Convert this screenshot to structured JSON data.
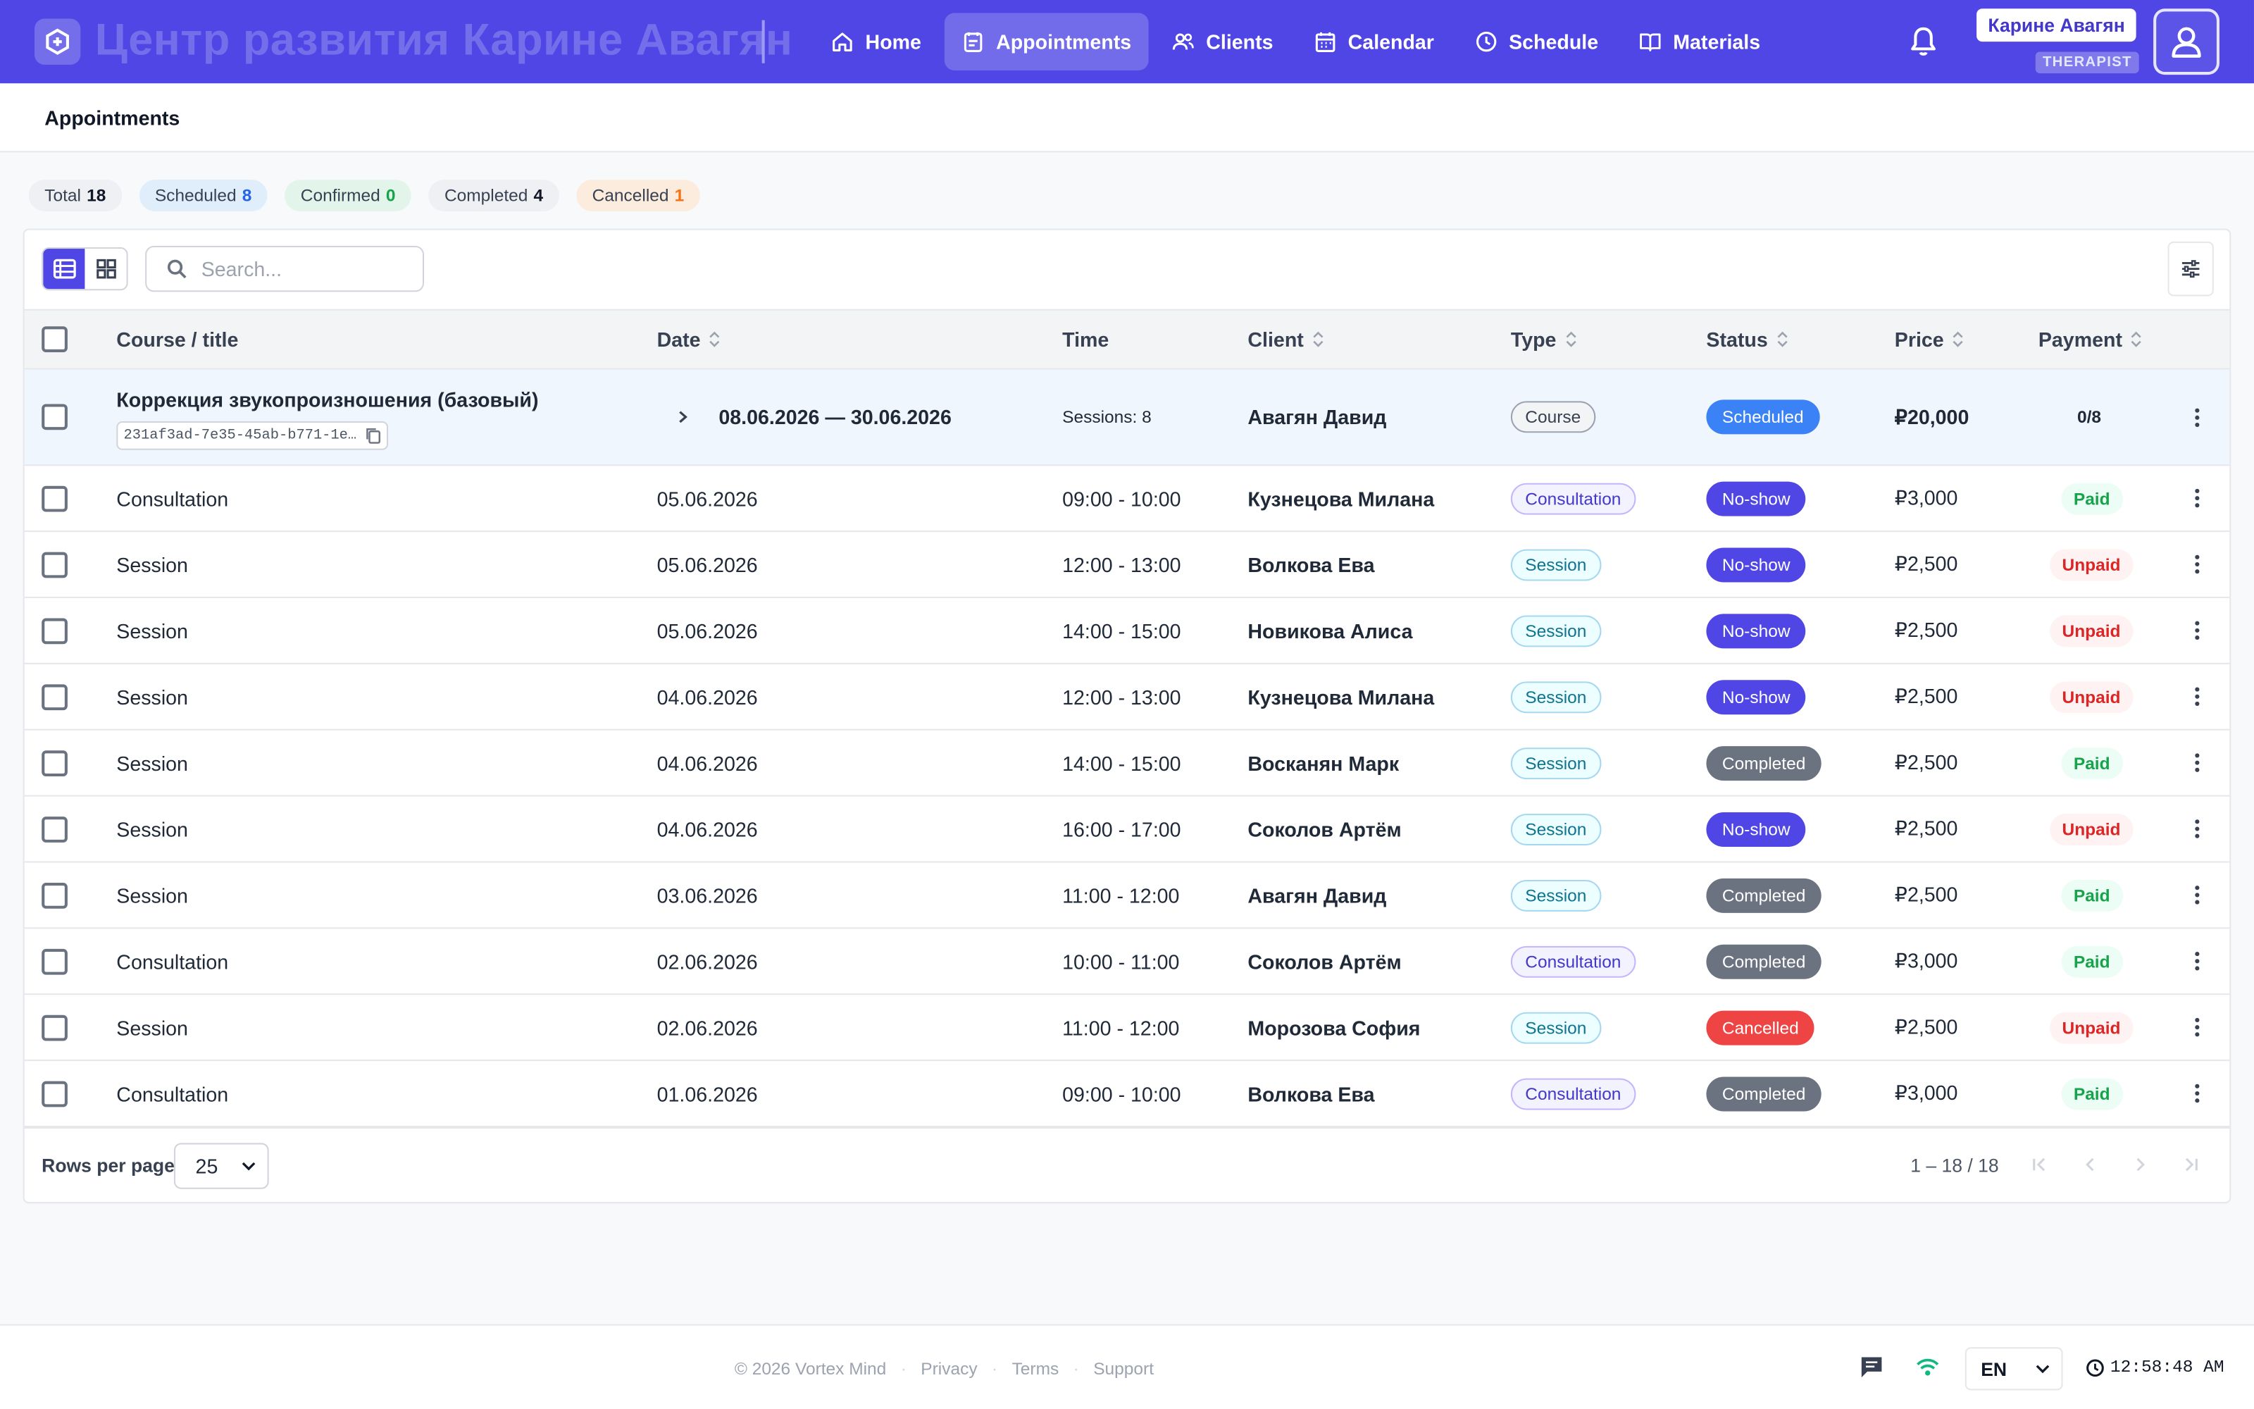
{
  "app": {
    "brand": "Центр развития Карине Авагян",
    "nav": [
      {
        "label": "Home",
        "icon": "home-icon"
      },
      {
        "label": "Appointments",
        "icon": "appointments-icon",
        "active": true
      },
      {
        "label": "Clients",
        "icon": "clients-icon"
      },
      {
        "label": "Calendar",
        "icon": "calendar-icon"
      },
      {
        "label": "Schedule",
        "icon": "clock-icon"
      },
      {
        "label": "Materials",
        "icon": "book-icon"
      }
    ],
    "user": {
      "name": "Карине Авагян",
      "role": "THERAPIST"
    },
    "accent": "#4f46e5"
  },
  "page": {
    "title": "Appointments"
  },
  "stats": [
    {
      "label": "Total",
      "count": "18",
      "bg": "#eef0f3",
      "color": "#111827"
    },
    {
      "label": "Scheduled",
      "count": "8",
      "bg": "#e0edfb",
      "color": "#2563eb"
    },
    {
      "label": "Confirmed",
      "count": "0",
      "bg": "#e3f5ea",
      "color": "#16a34a"
    },
    {
      "label": "Completed",
      "count": "4",
      "bg": "#eef0f3",
      "color": "#111827"
    },
    {
      "label": "Cancelled",
      "count": "1",
      "bg": "#fcecdd",
      "color": "#f97316"
    }
  ],
  "toolbar": {
    "search_placeholder": "Search..."
  },
  "table": {
    "columns": {
      "title": "Course / title",
      "date": "Date",
      "time": "Time",
      "client": "Client",
      "type": "Type",
      "status": "Status",
      "price": "Price",
      "payment": "Payment"
    },
    "course_row": {
      "title": "Коррекция звукопроизношения (базовый)",
      "id": "231af3ad-7e35-45ab-b771-1e…",
      "date": "08.06.2026 — 30.06.2026",
      "time": "Sessions: 8",
      "client": "Авагян Давид",
      "type": "Course",
      "status": "Scheduled",
      "price": "₽20,000",
      "payment": "0/8"
    },
    "rows": [
      {
        "title": "Consultation",
        "date": "05.06.2026",
        "time": "09:00 - 10:00",
        "client": "Кузнецова Милана",
        "type": "Consultation",
        "status": "No-show",
        "price": "₽3,000",
        "payment": "Paid"
      },
      {
        "title": "Session",
        "date": "05.06.2026",
        "time": "12:00 - 13:00",
        "client": "Волкова Ева",
        "type": "Session",
        "status": "No-show",
        "price": "₽2,500",
        "payment": "Unpaid"
      },
      {
        "title": "Session",
        "date": "05.06.2026",
        "time": "14:00 - 15:00",
        "client": "Новикова Алиса",
        "type": "Session",
        "status": "No-show",
        "price": "₽2,500",
        "payment": "Unpaid"
      },
      {
        "title": "Session",
        "date": "04.06.2026",
        "time": "12:00 - 13:00",
        "client": "Кузнецова Милана",
        "type": "Session",
        "status": "No-show",
        "price": "₽2,500",
        "payment": "Unpaid"
      },
      {
        "title": "Session",
        "date": "04.06.2026",
        "time": "14:00 - 15:00",
        "client": "Восканян Марк",
        "type": "Session",
        "status": "Completed",
        "price": "₽2,500",
        "payment": "Paid"
      },
      {
        "title": "Session",
        "date": "04.06.2026",
        "time": "16:00 - 17:00",
        "client": "Соколов Артём",
        "type": "Session",
        "status": "No-show",
        "price": "₽2,500",
        "payment": "Unpaid"
      },
      {
        "title": "Session",
        "date": "03.06.2026",
        "time": "11:00 - 12:00",
        "client": "Авагян Давид",
        "type": "Session",
        "status": "Completed",
        "price": "₽2,500",
        "payment": "Paid"
      },
      {
        "title": "Consultation",
        "date": "02.06.2026",
        "time": "10:00 - 11:00",
        "client": "Соколов Артём",
        "type": "Consultation",
        "status": "Completed",
        "price": "₽3,000",
        "payment": "Paid"
      },
      {
        "title": "Session",
        "date": "02.06.2026",
        "time": "11:00 - 12:00",
        "client": "Морозова София",
        "type": "Session",
        "status": "Cancelled",
        "price": "₽2,500",
        "payment": "Unpaid"
      },
      {
        "title": "Consultation",
        "date": "01.06.2026",
        "time": "09:00 - 10:00",
        "client": "Волкова Ева",
        "type": "Consultation",
        "status": "Completed",
        "price": "₽3,000",
        "payment": "Paid"
      }
    ]
  },
  "pagination": {
    "rows_per_page_label": "Rows per page",
    "rows_per_page": "25",
    "range": "1 – 18 / 18"
  },
  "footer": {
    "copyright": "© 2026 Vortex Mind",
    "links": [
      "Privacy",
      "Terms",
      "Support"
    ],
    "language": "EN",
    "time": "12:58:48 AM"
  }
}
